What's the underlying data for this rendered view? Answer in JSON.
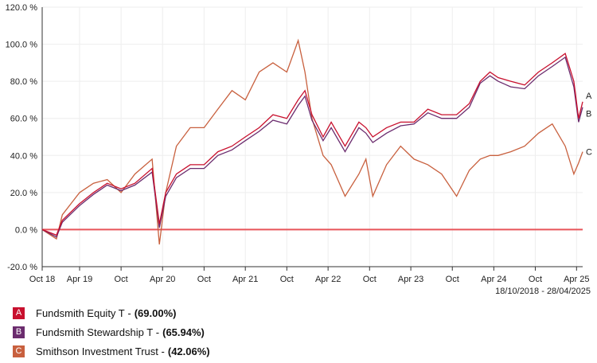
{
  "chart_data": {
    "type": "line",
    "title": "",
    "xlabel": "",
    "ylabel": "",
    "ylim": [
      -20,
      120
    ],
    "y_ticks": [
      "120.0 %",
      "100.0 %",
      "80.0 %",
      "60.0 %",
      "40.0 %",
      "20.0 %",
      "0.0 %",
      "-20.0 %"
    ],
    "y_tick_values": [
      120,
      100,
      80,
      60,
      40,
      20,
      0,
      -20
    ],
    "x_range": [
      "2018-10-18",
      "2025-04-28"
    ],
    "x_ticks": [
      {
        "label": "Oct 18",
        "date": "2018-10-18"
      },
      {
        "label": "Apr 19",
        "date": "2019-04-01"
      },
      {
        "label": "Oct",
        "date": "2019-10-01"
      },
      {
        "label": "Apr 20",
        "date": "2020-04-01"
      },
      {
        "label": "Oct",
        "date": "2020-10-01"
      },
      {
        "label": "Apr 21",
        "date": "2021-04-01"
      },
      {
        "label": "Oct",
        "date": "2021-10-01"
      },
      {
        "label": "Apr 22",
        "date": "2022-04-01"
      },
      {
        "label": "Oct",
        "date": "2022-10-01"
      },
      {
        "label": "Apr 23",
        "date": "2023-04-01"
      },
      {
        "label": "Oct",
        "date": "2023-10-01"
      },
      {
        "label": "Apr 24",
        "date": "2024-04-01"
      },
      {
        "label": "Oct",
        "date": "2024-10-01"
      },
      {
        "label": "Apr 25",
        "date": "2025-04-01"
      }
    ],
    "grid": true,
    "reference_line": {
      "y": 0,
      "color": "#e8545a"
    },
    "date_range_label": "18/10/2018 - 28/04/2025",
    "legend_placement": "bottom-left",
    "dates": [
      "2018-10-18",
      "2018-12-20",
      "2019-01-15",
      "2019-04-01",
      "2019-06-01",
      "2019-08-01",
      "2019-10-01",
      "2019-12-01",
      "2020-02-15",
      "2020-03-18",
      "2020-04-15",
      "2020-06-01",
      "2020-08-01",
      "2020-10-01",
      "2020-12-01",
      "2021-02-01",
      "2021-04-01",
      "2021-06-01",
      "2021-08-01",
      "2021-10-01",
      "2021-11-20",
      "2021-12-20",
      "2022-01-20",
      "2022-03-10",
      "2022-04-15",
      "2022-06-15",
      "2022-08-15",
      "2022-09-15",
      "2022-10-15",
      "2022-12-15",
      "2023-02-15",
      "2023-04-15",
      "2023-06-15",
      "2023-08-15",
      "2023-10-20",
      "2023-12-15",
      "2024-02-01",
      "2024-03-15",
      "2024-04-20",
      "2024-06-15",
      "2024-08-15",
      "2024-10-15",
      "2024-12-15",
      "2025-02-10",
      "2025-03-20",
      "2025-04-10",
      "2025-04-28"
    ],
    "series": [
      {
        "label": "A",
        "name": "Fundsmith Equity T",
        "total": "(69.00%)",
        "color": "#c8102e",
        "values": [
          0,
          -3,
          5,
          14,
          20,
          25,
          22,
          25,
          33,
          3,
          20,
          30,
          35,
          35,
          42,
          45,
          50,
          55,
          62,
          60,
          70,
          75,
          62,
          50,
          58,
          45,
          58,
          55,
          50,
          55,
          58,
          58,
          65,
          62,
          62,
          68,
          80,
          85,
          82,
          80,
          78,
          85,
          90,
          95,
          80,
          60,
          69
        ]
      },
      {
        "label": "B",
        "name": "Fundsmith Stewardship T ",
        "total": "(65.94%)",
        "color": "#6b2c6e",
        "values": [
          0,
          -4,
          4,
          13,
          19,
          24,
          21,
          24,
          31,
          1,
          18,
          28,
          33,
          33,
          40,
          43,
          48,
          53,
          59,
          57,
          67,
          72,
          59,
          48,
          55,
          42,
          55,
          52,
          47,
          52,
          56,
          57,
          63,
          60,
          60,
          66,
          79,
          83,
          80,
          77,
          76,
          83,
          88,
          93,
          77,
          58,
          66
        ]
      },
      {
        "label": "C",
        "name": "Smithson Investment Trust",
        "total": "(42.06%)",
        "color": "#c8603e",
        "values": [
          0,
          -5,
          8,
          20,
          25,
          27,
          20,
          30,
          38,
          -8,
          20,
          45,
          55,
          55,
          65,
          75,
          70,
          85,
          90,
          85,
          102,
          85,
          60,
          40,
          35,
          18,
          30,
          38,
          18,
          35,
          45,
          38,
          35,
          30,
          18,
          32,
          38,
          40,
          40,
          42,
          45,
          52,
          57,
          45,
          30,
          36,
          42
        ]
      }
    ]
  }
}
